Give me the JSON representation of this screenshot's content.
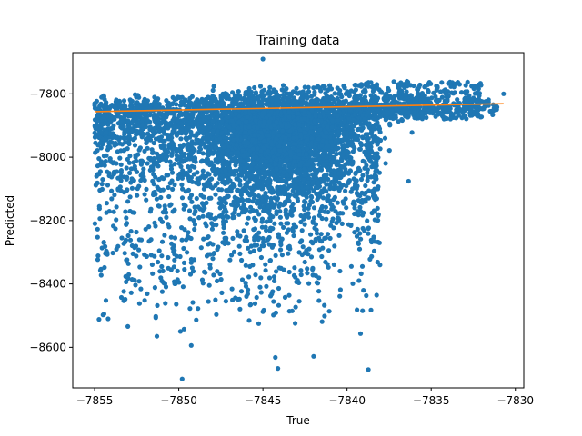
{
  "chart_data": {
    "type": "scatter",
    "title": "Training data",
    "xlabel": "True",
    "ylabel": "Predicted",
    "xlim": [
      -7856.3,
      -7829.5
    ],
    "ylim": [
      -8728,
      -7670
    ],
    "xticks": [
      -7855,
      -7850,
      -7845,
      -7840,
      -7835,
      -7830
    ],
    "yticks": [
      -8600,
      -8400,
      -8200,
      -8000,
      -7800
    ],
    "xtick_labels": [
      "−7855",
      "−7850",
      "−7845",
      "−7840",
      "−7835",
      "−7830"
    ],
    "ytick_labels": [
      "−8600",
      "−8400",
      "−8200",
      "−8000",
      "−7800"
    ],
    "grid": false,
    "series": [
      {
        "type": "scatter",
        "color": "#1f77b4",
        "x_range": [
          -7855,
          -7830.7
        ],
        "y_range": [
          -8700,
          -7685
        ],
        "notable_points": [
          {
            "x": -7849.8,
            "y": -8700
          },
          {
            "x": -7851.3,
            "y": -8565
          },
          {
            "x": -7849.9,
            "y": -8550
          },
          {
            "x": -7854.2,
            "y": -8510
          },
          {
            "x": -7830.7,
            "y": -7800
          },
          {
            "x": -7831.5,
            "y": -7855
          },
          {
            "x": -7845.0,
            "y": -7690
          }
        ],
        "density_peak": {
          "x": -7844,
          "y": -7850
        }
      },
      {
        "type": "line",
        "color": "#ff7f0e",
        "x": [
          -7855,
          -7830.7
        ],
        "y": [
          -7856,
          -7831
        ]
      }
    ]
  }
}
